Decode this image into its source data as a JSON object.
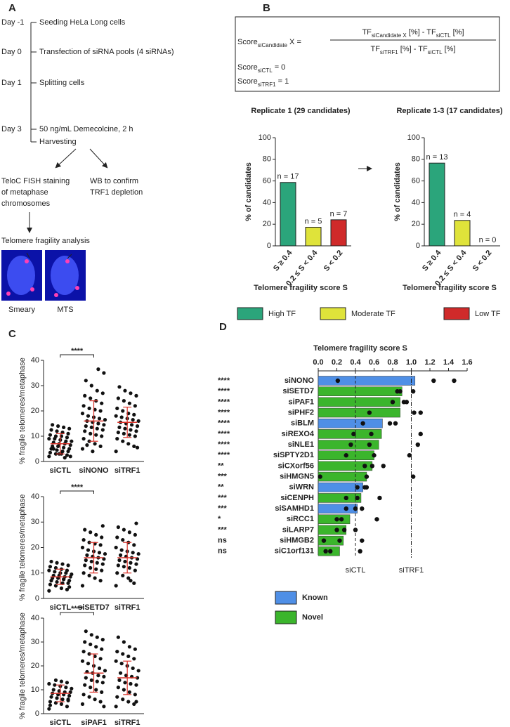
{
  "panel_labels": [
    "A",
    "B",
    "C",
    "D"
  ],
  "panel_a": {
    "days": [
      {
        "day": "Day -1",
        "steps": [
          "Seeding HeLa Long cells"
        ]
      },
      {
        "day": "Day 0",
        "steps": [
          "Transfection of siRNA pools (4 siRNAs)"
        ]
      },
      {
        "day": "Day 1",
        "steps": [
          "Splitting cells"
        ]
      },
      {
        "day": "Day 3",
        "steps": [
          "50 ng/mL Demecolcine, 2 h",
          "Harvesting"
        ]
      }
    ],
    "branch_left": [
      "TeloC FISH staining",
      "of metaphase",
      "chromosomes"
    ],
    "branch_right": [
      "WB to confirm",
      "TRF1 depletion"
    ],
    "analysis": "Telomere fragility analysis",
    "images": [
      "Smeary",
      "MTS"
    ]
  },
  "panel_b": {
    "formula": {
      "lhs": [
        "Score",
        "siCandidate",
        " X ="
      ],
      "numerator": [
        "TF",
        "siCandidate X",
        " [%] - TF",
        "siCTL",
        " [%]"
      ],
      "denominator": [
        "TF",
        "siTRF1",
        " [%] - TF",
        "siCTL",
        " [%]"
      ],
      "line2": [
        "Score",
        "siCTL",
        " = 0"
      ],
      "line3": [
        "Score",
        "siTRF1",
        " = 1"
      ]
    },
    "legend": [
      {
        "name": "High TF",
        "color": "#2ba57b"
      },
      {
        "name": "Moderate TF",
        "color": "#dfe33a"
      },
      {
        "name": "Low TF",
        "color": "#d02a2a"
      }
    ]
  },
  "chart_data": [
    {
      "type": "bar",
      "title": "Replicate 1 (29 candidates)",
      "categories": [
        "S ≥ 0.4",
        "0.2 ≤ S < 0.4",
        "S < 0.2"
      ],
      "values": [
        58.6,
        17.2,
        24.1
      ],
      "counts": [
        17,
        5,
        7
      ],
      "count_labels": [
        "n = 17",
        "n = 5",
        "n = 7"
      ],
      "ylim": [
        0,
        100
      ],
      "yticks": [
        0,
        20,
        40,
        60,
        80,
        100
      ],
      "ylabel": "% of candidates",
      "xlabel": "Telomere fragility score S"
    },
    {
      "type": "bar",
      "title": "Replicate 1-3 (17 candidates)",
      "categories": [
        "S ≥ 0.4",
        "0.2 ≤ S < 0.4",
        "S < 0.2"
      ],
      "values": [
        76.5,
        23.5,
        0
      ],
      "counts": [
        13,
        4,
        0
      ],
      "count_labels": [
        "n = 13",
        "n = 4",
        "n = 0"
      ],
      "ylim": [
        0,
        100
      ],
      "yticks": [
        0,
        20,
        40,
        60,
        80,
        100
      ],
      "ylabel": "% of candidates",
      "xlabel": "Telomere fragility score S"
    },
    {
      "type": "dot",
      "ylabel": "% fragile telomeres/metaphase",
      "categories": [
        "siCTL",
        "siNONO",
        "siTRF1"
      ],
      "ylim": [
        0,
        40
      ],
      "yticks": [
        0,
        10,
        20,
        30,
        40
      ],
      "color": "#111111",
      "error_color": "#d9342b",
      "significance": {
        "label": "****",
        "between": [
          0,
          1
        ]
      },
      "groups": [
        {
          "values": [
            2,
            2.5,
            3,
            3,
            3.5,
            4,
            4,
            4.5,
            5,
            5,
            5.5,
            6,
            6,
            6.5,
            7,
            7,
            7.5,
            8,
            8,
            8.5,
            9,
            9,
            9.5,
            10,
            10,
            10.5,
            11,
            11.5,
            12,
            12.5,
            13,
            13.5,
            14,
            14.5,
            2,
            1.5,
            3,
            5
          ],
          "mean": 7,
          "sd": 4
        },
        {
          "values": [
            5,
            6,
            7,
            8,
            9,
            10,
            10.5,
            11,
            12,
            12.5,
            13,
            13.5,
            14,
            14.5,
            15,
            15.5,
            16,
            16.5,
            17,
            17.5,
            18,
            19,
            20,
            20.5,
            21,
            22,
            23,
            24,
            25,
            26,
            27,
            28,
            30,
            32,
            35,
            36.5,
            4,
            6.5
          ],
          "mean": 16,
          "sd": 8
        },
        {
          "values": [
            4,
            6,
            7,
            8,
            9,
            10,
            10.5,
            11,
            11.5,
            12,
            12.5,
            13,
            13.5,
            14,
            14.5,
            15,
            15.5,
            16,
            16.5,
            17,
            17.5,
            18,
            18.5,
            19,
            20,
            21,
            22,
            23,
            24,
            25,
            26,
            27,
            28,
            29.5,
            5.5
          ],
          "mean": 15.5,
          "sd": 6
        }
      ]
    },
    {
      "type": "dot",
      "ylabel": "% fragile telomeres/metaphase",
      "categories": [
        "siCTL",
        "siSETD7",
        "siTRF1"
      ],
      "ylim": [
        0,
        40
      ],
      "yticks": [
        0,
        10,
        20,
        30,
        40
      ],
      "color": "#111111",
      "error_color": "#d9342b",
      "significance": {
        "label": "****",
        "between": [
          0,
          1
        ]
      },
      "groups": [
        {
          "values": [
            3,
            3.5,
            4,
            5,
            5.5,
            6,
            6,
            6.5,
            7,
            7,
            7.5,
            8,
            8,
            8.5,
            8.5,
            9,
            9,
            9.5,
            10,
            10,
            10.5,
            11,
            11,
            11.5,
            12,
            12.5,
            13,
            13.5,
            14,
            14.5,
            4.5,
            7.5
          ],
          "mean": 8.5,
          "sd": 3
        },
        {
          "values": [
            5,
            7,
            8,
            9,
            10,
            11,
            11.5,
            12,
            13,
            13.5,
            14,
            14.5,
            15,
            15.5,
            16,
            16.5,
            17,
            17.5,
            18,
            18.5,
            19,
            20,
            21,
            21.5,
            22,
            23,
            24,
            25,
            26,
            27,
            28.5
          ],
          "mean": 16,
          "sd": 6
        },
        {
          "values": [
            5,
            6,
            8,
            9,
            10,
            11,
            12,
            12.5,
            13,
            13.5,
            14,
            14.5,
            15,
            15.5,
            16,
            16.5,
            17,
            17.5,
            18,
            18.5,
            19,
            20,
            21,
            22,
            23,
            24,
            25,
            26,
            27,
            28,
            29.5,
            7
          ],
          "mean": 16,
          "sd": 6
        }
      ]
    },
    {
      "type": "dot",
      "ylabel": "% fragile telomeres/metaphase",
      "categories": [
        "siCTL",
        "siPAF1",
        "siTRF1"
      ],
      "ylim": [
        0,
        40
      ],
      "yticks": [
        0,
        10,
        20,
        30,
        40
      ],
      "color": "#111111",
      "error_color": "#d9342b",
      "significance": {
        "label": "****",
        "between": [
          0,
          1
        ]
      },
      "groups": [
        {
          "values": [
            2,
            3,
            4,
            4.5,
            5,
            5.5,
            6,
            6.5,
            7,
            7.5,
            8,
            8,
            8.5,
            9,
            9,
            9.5,
            10,
            10.5,
            11,
            11.5,
            12,
            12.5,
            13,
            13.5,
            14,
            3.5,
            6
          ],
          "mean": 8.5,
          "sd": 3.5
        },
        {
          "values": [
            4,
            5,
            6,
            7,
            8,
            9,
            10,
            11,
            12,
            13,
            13.5,
            14,
            15,
            15.5,
            16,
            17,
            17.5,
            18,
            19,
            20,
            21,
            22,
            23,
            24,
            25,
            26,
            27,
            28,
            29,
            30,
            31,
            32,
            33,
            34.5,
            3
          ],
          "mean": 17,
          "sd": 8
        },
        {
          "values": [
            3,
            4,
            5,
            6,
            7,
            8,
            9,
            10,
            11,
            12,
            12.5,
            13,
            14,
            15,
            15.5,
            16,
            17,
            18,
            19,
            20,
            21,
            22,
            23,
            24,
            25,
            26,
            27,
            28,
            30,
            32,
            5
          ],
          "mean": 15,
          "sd": 7
        }
      ]
    },
    {
      "type": "hbar",
      "title": "Telomere fragility score S",
      "categories": [
        "siNONO",
        "siSETD7",
        "siPAF1",
        "siPHF2",
        "siBLM",
        "siREXO4",
        "siNLE1",
        "siSPTY2D1",
        "siCXorf56",
        "siHMGN5",
        "siWRN",
        "siCENPH",
        "siSAMHD1",
        "siRCC1",
        "siLARP7",
        "siHMGB2",
        "siC1orf131"
      ],
      "values": [
        1.04,
        0.9,
        0.88,
        0.88,
        0.69,
        0.68,
        0.65,
        0.6,
        0.58,
        0.52,
        0.48,
        0.46,
        0.42,
        0.34,
        0.3,
        0.27,
        0.23
      ],
      "replicates": [
        [
          0.21,
          1.24,
          1.46
        ],
        [
          0.85,
          0.88,
          1.02
        ],
        [
          0.8,
          0.92,
          0.95
        ],
        [
          0.55,
          1.03,
          1.1
        ],
        [
          0.48,
          0.77,
          0.83
        ],
        [
          0.38,
          0.57,
          1.1
        ],
        [
          0.35,
          0.55,
          1.07
        ],
        [
          0.3,
          0.6,
          0.98
        ],
        [
          0.5,
          0.58,
          0.7
        ],
        [
          0.02,
          0.52,
          1.02
        ],
        [
          0.42,
          0.5,
          0.52
        ],
        [
          0.3,
          0.42,
          0.66
        ],
        [
          0.3,
          0.4,
          0.47
        ],
        [
          0.2,
          0.25,
          0.63
        ],
        [
          0.2,
          0.28,
          0.4
        ],
        [
          0.06,
          0.23,
          0.47
        ],
        [
          0.08,
          0.13,
          0.45
        ]
      ],
      "significance": [
        "****",
        "****",
        "****",
        "****",
        "****",
        "****",
        "****",
        "****",
        "**",
        "***",
        "**",
        "***",
        "***",
        "*",
        "***",
        "ns",
        "ns"
      ],
      "known": [
        true,
        false,
        false,
        false,
        true,
        false,
        false,
        false,
        false,
        false,
        true,
        false,
        true,
        false,
        false,
        false,
        false
      ],
      "legend": [
        {
          "name": "Known",
          "color": "#4f8fe6"
        },
        {
          "name": "Novel",
          "color": "#3bb52c"
        }
      ],
      "xlim": [
        0,
        1.6
      ],
      "xticks": [
        {
          "value": 0,
          "label": "0.0"
        },
        0.2,
        0.4,
        0.6,
        0.8,
        {
          "value": 1,
          "label": "1.0"
        },
        1.2,
        1.4,
        1.6
      ],
      "reference_lines": [
        {
          "value": 0.4,
          "label": "siCTL"
        },
        {
          "value": 1,
          "label": "siTRF1"
        }
      ]
    }
  ]
}
